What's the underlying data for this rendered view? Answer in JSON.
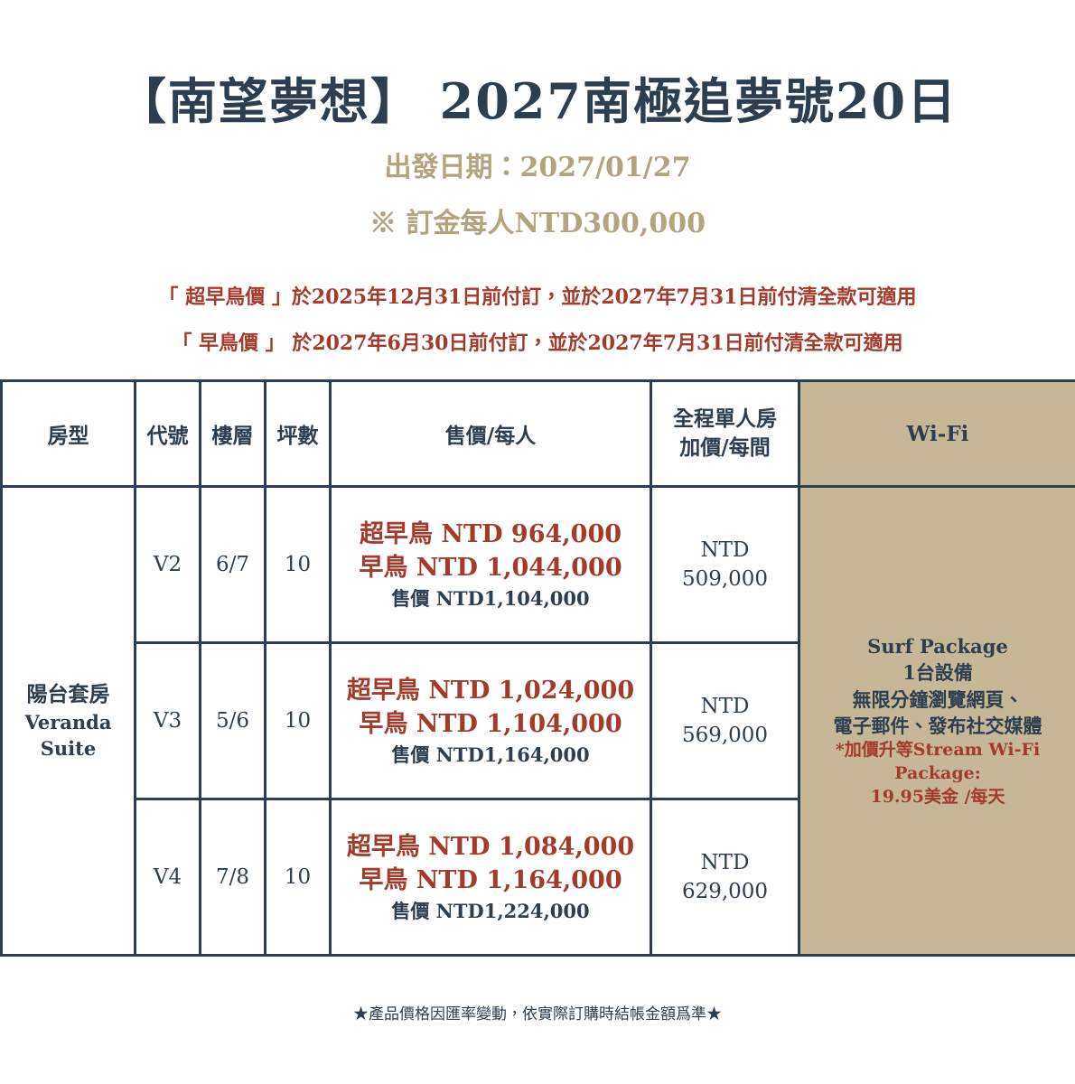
{
  "header": {
    "title": "【南望夢想】 2027南極追夢號20日",
    "date": "出發日期：2027/01/27",
    "deposit": "※ 訂金每人NTD300,000"
  },
  "notes": [
    "「 超早鳥價 」於2025年12月31日前付訂，並於2027年7月31日前付清全款可適用",
    "「 早鳥價 」 於2027年6月30日前付訂，並於2027年7月31日前付清全款可適用"
  ],
  "table": {
    "headers": [
      "房型",
      "代號",
      "樓層",
      "坪數",
      "售價/每人",
      [
        "全程單人房",
        "加價/每間"
      ],
      "Wi-Fi"
    ],
    "room_type": [
      "陽台套房",
      "Veranda",
      "Suite"
    ],
    "rows": [
      {
        "code": "V2",
        "floor": "6/7",
        "area": "10",
        "prices": [
          "超早鳥  NTD 964,000",
          "早鳥  NTD 1,044,000",
          "售價 NTD1,104,000"
        ],
        "single": [
          "NTD",
          "509,000"
        ]
      },
      {
        "code": "V3",
        "floor": "5/6",
        "area": "10",
        "prices": [
          "超早鳥  NTD 1,024,000",
          "早鳥  NTD 1,104,000",
          "售價 NTD1,164,000"
        ],
        "single": [
          "NTD",
          "569,000"
        ]
      },
      {
        "code": "V4",
        "floor": "7/8",
        "area": "10",
        "prices": [
          "超早鳥  NTD 1,084,000",
          "早鳥  NTD 1,164,000",
          "售價 NTD1,224,000"
        ],
        "single": [
          "NTD",
          "629,000"
        ]
      }
    ],
    "wifi": {
      "main": [
        "Surf Package",
        "1台設備",
        "無限分鐘瀏覽網頁、",
        "電子郵件、發布社交媒體"
      ],
      "note": [
        "*加價升等Stream Wi-Fi",
        "Package:",
        "19.95美金 /每天"
      ]
    }
  },
  "footer": "★產品價格因匯率變動，依實際訂購時結帳金額爲準★"
}
